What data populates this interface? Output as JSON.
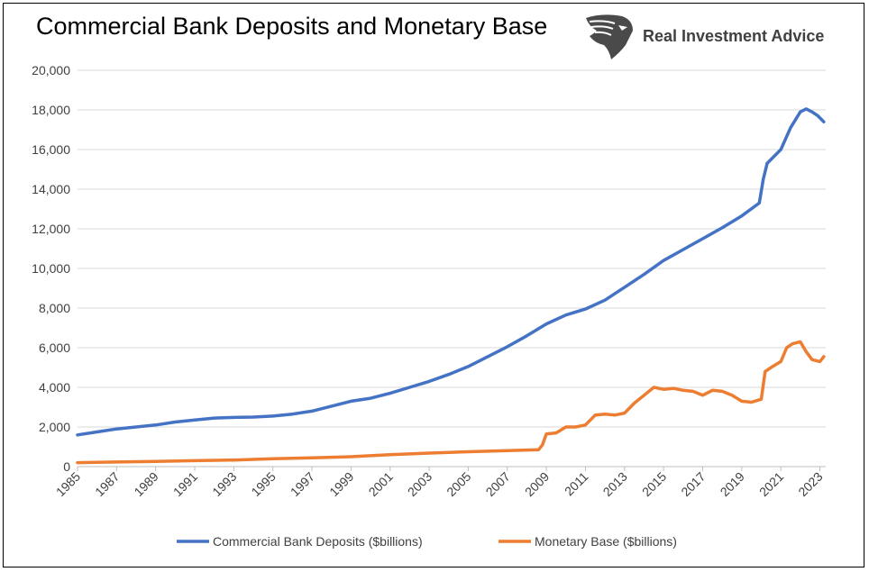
{
  "title": "Commercial Bank Deposits and Monetary Base",
  "brand": {
    "name": "Real Investment Advice",
    "logo_icon": "eagle-head-icon"
  },
  "chart_data": {
    "type": "line",
    "title": "Commercial Bank Deposits and Monetary Base",
    "xlabel": "",
    "ylabel": "",
    "xlim": [
      1985,
      2023.3
    ],
    "ylim": [
      0,
      20000
    ],
    "yticks": [
      0,
      2000,
      4000,
      6000,
      8000,
      10000,
      12000,
      14000,
      16000,
      18000,
      20000
    ],
    "ytick_labels": [
      "0",
      "2,000",
      "4,000",
      "6,000",
      "8,000",
      "10,000",
      "12,000",
      "14,000",
      "16,000",
      "18,000",
      "20,000"
    ],
    "xticks": [
      1985,
      1987,
      1989,
      1991,
      1993,
      1995,
      1997,
      1999,
      2001,
      2003,
      2005,
      2007,
      2009,
      2011,
      2013,
      2015,
      2017,
      2019,
      2021,
      2023
    ],
    "xtick_labels": [
      "1985",
      "1987",
      "1989",
      "1991",
      "1993",
      "1995",
      "1997",
      "1999",
      "2001",
      "2003",
      "2005",
      "2007",
      "2009",
      "2011",
      "2013",
      "2015",
      "2017",
      "2019",
      "2021",
      "2023"
    ],
    "grid": "horizontal",
    "legend_position": "bottom",
    "series": [
      {
        "name": "Commercial Bank Deposits ($billions)",
        "color": "#4472C4",
        "points": [
          [
            1985,
            1600
          ],
          [
            1986,
            1750
          ],
          [
            1987,
            1900
          ],
          [
            1988,
            2000
          ],
          [
            1989,
            2100
          ],
          [
            1990,
            2250
          ],
          [
            1991,
            2350
          ],
          [
            1992,
            2450
          ],
          [
            1993,
            2480
          ],
          [
            1994,
            2500
          ],
          [
            1995,
            2550
          ],
          [
            1996,
            2650
          ],
          [
            1997,
            2800
          ],
          [
            1998,
            3050
          ],
          [
            1999,
            3300
          ],
          [
            2000,
            3450
          ],
          [
            2001,
            3700
          ],
          [
            2002,
            4000
          ],
          [
            2003,
            4300
          ],
          [
            2004,
            4650
          ],
          [
            2005,
            5050
          ],
          [
            2006,
            5550
          ],
          [
            2007,
            6050
          ],
          [
            2008,
            6600
          ],
          [
            2009,
            7200
          ],
          [
            2010,
            7650
          ],
          [
            2011,
            7950
          ],
          [
            2012,
            8400
          ],
          [
            2013,
            9050
          ],
          [
            2014,
            9700
          ],
          [
            2015,
            10400
          ],
          [
            2016,
            10950
          ],
          [
            2017,
            11500
          ],
          [
            2018,
            12050
          ],
          [
            2019,
            12650
          ],
          [
            2019.9,
            13300
          ],
          [
            2020.1,
            14500
          ],
          [
            2020.3,
            15300
          ],
          [
            2021,
            16000
          ],
          [
            2021.5,
            17100
          ],
          [
            2022,
            17900
          ],
          [
            2022.3,
            18050
          ],
          [
            2022.6,
            17900
          ],
          [
            2022.9,
            17700
          ],
          [
            2023.2,
            17400
          ]
        ]
      },
      {
        "name": "Monetary Base ($billions)",
        "color": "#ED7D31",
        "points": [
          [
            1985,
            200
          ],
          [
            1987,
            230
          ],
          [
            1989,
            260
          ],
          [
            1991,
            300
          ],
          [
            1993,
            330
          ],
          [
            1995,
            400
          ],
          [
            1997,
            440
          ],
          [
            1999,
            500
          ],
          [
            2001,
            600
          ],
          [
            2003,
            680
          ],
          [
            2005,
            750
          ],
          [
            2007,
            810
          ],
          [
            2008.6,
            850
          ],
          [
            2008.8,
            1100
          ],
          [
            2009,
            1650
          ],
          [
            2009.5,
            1700
          ],
          [
            2010,
            2000
          ],
          [
            2010.5,
            2000
          ],
          [
            2011,
            2100
          ],
          [
            2011.5,
            2600
          ],
          [
            2012,
            2650
          ],
          [
            2012.5,
            2600
          ],
          [
            2013,
            2700
          ],
          [
            2013.5,
            3200
          ],
          [
            2014,
            3600
          ],
          [
            2014.5,
            4000
          ],
          [
            2015,
            3900
          ],
          [
            2015.5,
            3950
          ],
          [
            2016,
            3850
          ],
          [
            2016.5,
            3800
          ],
          [
            2017,
            3600
          ],
          [
            2017.5,
            3850
          ],
          [
            2018,
            3800
          ],
          [
            2018.5,
            3600
          ],
          [
            2019,
            3300
          ],
          [
            2019.5,
            3250
          ],
          [
            2020,
            3400
          ],
          [
            2020.2,
            4800
          ],
          [
            2020.5,
            5000
          ],
          [
            2021,
            5300
          ],
          [
            2021.3,
            6000
          ],
          [
            2021.6,
            6200
          ],
          [
            2022,
            6300
          ],
          [
            2022.3,
            5800
          ],
          [
            2022.6,
            5400
          ],
          [
            2023,
            5300
          ],
          [
            2023.2,
            5550
          ]
        ]
      }
    ]
  }
}
